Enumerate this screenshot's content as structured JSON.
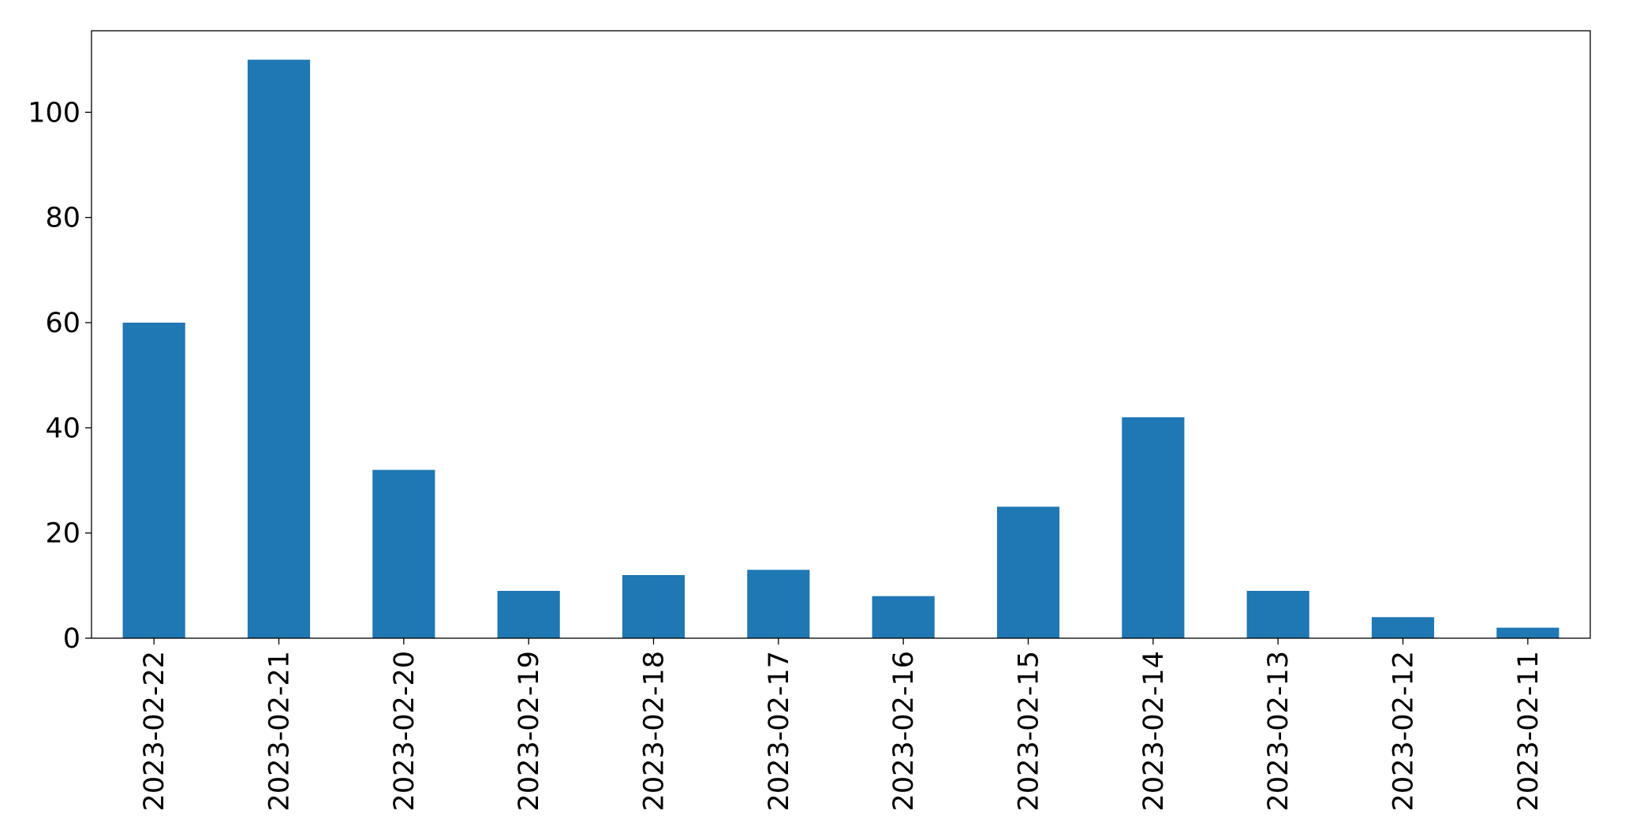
{
  "chart_data": {
    "type": "bar",
    "categories": [
      "2023-02-22",
      "2023-02-21",
      "2023-02-20",
      "2023-02-19",
      "2023-02-18",
      "2023-02-17",
      "2023-02-16",
      "2023-02-15",
      "2023-02-14",
      "2023-02-13",
      "2023-02-12",
      "2023-02-11"
    ],
    "values": [
      60,
      110,
      32,
      9,
      12,
      13,
      8,
      25,
      42,
      9,
      4,
      2
    ],
    "color": "#1f77b4",
    "ylim": [
      0,
      115.5
    ],
    "yticks": [
      0,
      20,
      40,
      60,
      80,
      100
    ],
    "grid": false
  }
}
